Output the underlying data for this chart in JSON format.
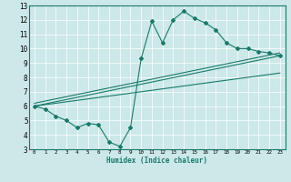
{
  "xlabel": "Humidex (Indice chaleur)",
  "ylabel": "",
  "bg_color": "#cce8e8",
  "line_color": "#1a7a6a",
  "grid_color": "#ffffff",
  "xlim": [
    -0.5,
    23.5
  ],
  "ylim": [
    3,
    13
  ],
  "xticks": [
    0,
    1,
    2,
    3,
    4,
    5,
    6,
    7,
    8,
    9,
    10,
    11,
    12,
    13,
    14,
    15,
    16,
    17,
    18,
    19,
    20,
    21,
    22,
    23
  ],
  "yticks": [
    3,
    4,
    5,
    6,
    7,
    8,
    9,
    10,
    11,
    12,
    13
  ],
  "series1_x": [
    0,
    1,
    2,
    3,
    4,
    5,
    6,
    7,
    8,
    9,
    10,
    11,
    12,
    13,
    14,
    15,
    16,
    17,
    18,
    19,
    20,
    21,
    22,
    23
  ],
  "series1_y": [
    6.0,
    5.8,
    5.3,
    5.0,
    4.5,
    4.8,
    4.7,
    3.5,
    3.2,
    4.5,
    9.3,
    11.9,
    10.4,
    12.0,
    12.6,
    12.1,
    11.8,
    11.3,
    10.4,
    10.0,
    10.0,
    9.8,
    9.7,
    9.5
  ],
  "series2_x": [
    0,
    23
  ],
  "series2_y": [
    6.0,
    9.5
  ],
  "series3_x": [
    0,
    23
  ],
  "series3_y": [
    6.0,
    8.3
  ],
  "series4_x": [
    0,
    23
  ],
  "series4_y": [
    6.2,
    9.7
  ]
}
